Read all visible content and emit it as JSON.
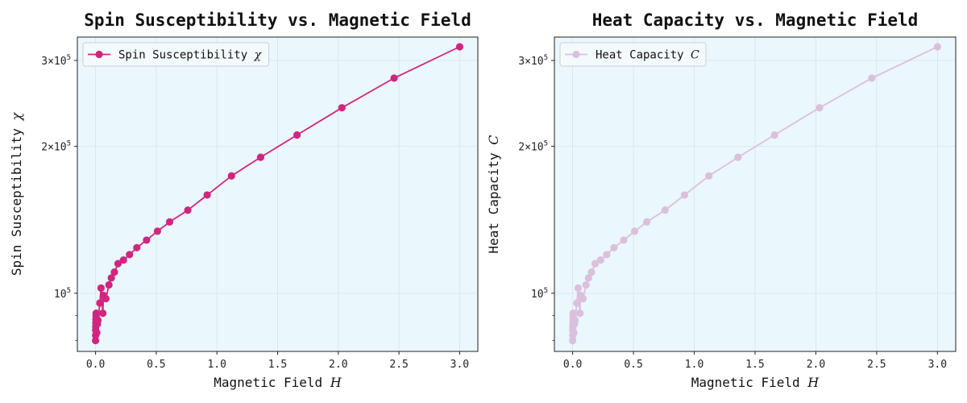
{
  "chart_data": [
    {
      "type": "line",
      "title": "Spin Susceptibility vs. Magnetic Field",
      "xlabel": "Magnetic Field",
      "xlabel_symbol": "H",
      "ylabel": "Spin Susceptibility",
      "ylabel_symbol": "χ",
      "xlim": [
        -0.15,
        3.15
      ],
      "ylim": [
        76000,
        335000
      ],
      "yscale": "log",
      "grid": true,
      "legend_position": "top-left",
      "background": "#eaf7fc",
      "x_ticks": [
        0.0,
        0.5,
        1.0,
        1.5,
        2.0,
        2.5,
        3.0
      ],
      "x_tick_labels": [
        "0.0",
        "0.5",
        "1.0",
        "1.5",
        "2.0",
        "2.5",
        "3.0"
      ],
      "y_ticks": [
        100000,
        200000,
        300000
      ],
      "y_tick_labels": [
        [
          "10",
          "5"
        ],
        [
          "2×10",
          "5"
        ],
        [
          "3×10",
          "5"
        ]
      ],
      "series": [
        {
          "name": "Spin Susceptibility",
          "name_symbol": "χ",
          "color": "#d1257f",
          "marker": "circle",
          "points": [
            {
              "x": 0.0,
              "y": 80000
            },
            {
              "x": 0.0005,
              "y": 82000
            },
            {
              "x": 0.001,
              "y": 84000
            },
            {
              "x": 0.0015,
              "y": 85500
            },
            {
              "x": 0.002,
              "y": 87000
            },
            {
              "x": 0.003,
              "y": 88500
            },
            {
              "x": 0.004,
              "y": 90000
            },
            {
              "x": 0.005,
              "y": 91000
            },
            {
              "x": 0.007,
              "y": 89000
            },
            {
              "x": 0.01,
              "y": 83000
            },
            {
              "x": 0.015,
              "y": 86500
            },
            {
              "x": 0.02,
              "y": 88000
            },
            {
              "x": 0.035,
              "y": 95500
            },
            {
              "x": 0.045,
              "y": 102500
            },
            {
              "x": 0.06,
              "y": 91000
            },
            {
              "x": 0.065,
              "y": 99000
            },
            {
              "x": 0.085,
              "y": 97500
            },
            {
              "x": 0.11,
              "y": 104000
            },
            {
              "x": 0.13,
              "y": 107500
            },
            {
              "x": 0.155,
              "y": 110500
            },
            {
              "x": 0.185,
              "y": 115000
            },
            {
              "x": 0.23,
              "y": 117000
            },
            {
              "x": 0.28,
              "y": 120000
            },
            {
              "x": 0.34,
              "y": 124000
            },
            {
              "x": 0.42,
              "y": 128500
            },
            {
              "x": 0.51,
              "y": 134000
            },
            {
              "x": 0.61,
              "y": 140000
            },
            {
              "x": 0.76,
              "y": 148000
            },
            {
              "x": 0.92,
              "y": 159000
            },
            {
              "x": 1.12,
              "y": 174000
            },
            {
              "x": 1.36,
              "y": 190000
            },
            {
              "x": 1.66,
              "y": 211000
            },
            {
              "x": 2.03,
              "y": 240000
            },
            {
              "x": 2.46,
              "y": 276000
            },
            {
              "x": 3.0,
              "y": 320000
            }
          ]
        }
      ]
    },
    {
      "type": "line",
      "title": "Heat Capacity vs. Magnetic Field",
      "xlabel": "Magnetic Field",
      "xlabel_symbol": "H",
      "ylabel": "Heat Capacity",
      "ylabel_symbol": "C",
      "xlim": [
        -0.15,
        3.15
      ],
      "ylim": [
        76000,
        335000
      ],
      "yscale": "log",
      "grid": true,
      "legend_position": "top-left",
      "background": "#eaf7fc",
      "x_ticks": [
        0.0,
        0.5,
        1.0,
        1.5,
        2.0,
        2.5,
        3.0
      ],
      "x_tick_labels": [
        "0.0",
        "0.5",
        "1.0",
        "1.5",
        "2.0",
        "2.5",
        "3.0"
      ],
      "y_ticks": [
        100000,
        200000,
        300000
      ],
      "y_tick_labels": [
        [
          "10",
          "5"
        ],
        [
          "2×10",
          "5"
        ],
        [
          "3×10",
          "5"
        ]
      ],
      "series": [
        {
          "name": "Heat Capacity",
          "name_symbol": "C",
          "color": "#dcbfdc",
          "marker": "circle",
          "points": [
            {
              "x": 0.0,
              "y": 80000
            },
            {
              "x": 0.0005,
              "y": 82000
            },
            {
              "x": 0.001,
              "y": 84000
            },
            {
              "x": 0.0015,
              "y": 85500
            },
            {
              "x": 0.002,
              "y": 87000
            },
            {
              "x": 0.003,
              "y": 88500
            },
            {
              "x": 0.004,
              "y": 90000
            },
            {
              "x": 0.005,
              "y": 91000
            },
            {
              "x": 0.007,
              "y": 89000
            },
            {
              "x": 0.01,
              "y": 83000
            },
            {
              "x": 0.015,
              "y": 86500
            },
            {
              "x": 0.02,
              "y": 88000
            },
            {
              "x": 0.035,
              "y": 95500
            },
            {
              "x": 0.045,
              "y": 102500
            },
            {
              "x": 0.06,
              "y": 91000
            },
            {
              "x": 0.065,
              "y": 99000
            },
            {
              "x": 0.085,
              "y": 97500
            },
            {
              "x": 0.11,
              "y": 104000
            },
            {
              "x": 0.13,
              "y": 107500
            },
            {
              "x": 0.155,
              "y": 110500
            },
            {
              "x": 0.185,
              "y": 115000
            },
            {
              "x": 0.23,
              "y": 117000
            },
            {
              "x": 0.28,
              "y": 120000
            },
            {
              "x": 0.34,
              "y": 124000
            },
            {
              "x": 0.42,
              "y": 128500
            },
            {
              "x": 0.51,
              "y": 134000
            },
            {
              "x": 0.61,
              "y": 140000
            },
            {
              "x": 0.76,
              "y": 148000
            },
            {
              "x": 0.92,
              "y": 159000
            },
            {
              "x": 1.12,
              "y": 174000
            },
            {
              "x": 1.36,
              "y": 190000
            },
            {
              "x": 1.66,
              "y": 211000
            },
            {
              "x": 2.03,
              "y": 240000
            },
            {
              "x": 2.46,
              "y": 276000
            },
            {
              "x": 3.0,
              "y": 320000
            }
          ]
        }
      ]
    }
  ]
}
